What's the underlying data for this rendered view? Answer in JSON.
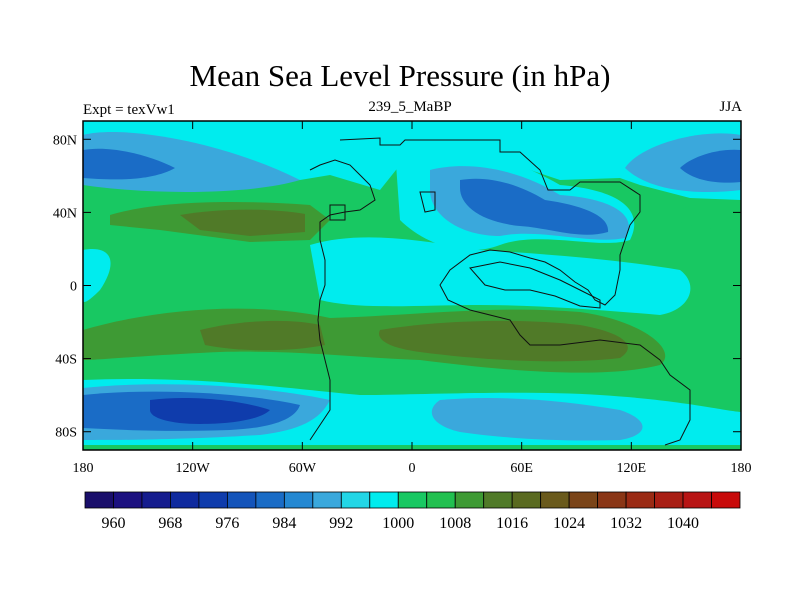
{
  "title": "Mean Sea Level Pressure (in hPa)",
  "left_label": "Expt = texVw1",
  "center_label": "239_5_MaBP",
  "right_label": "JJA",
  "lat_ticks": [
    "80N",
    "40N",
    "0",
    "40S",
    "80S"
  ],
  "lat_values": [
    80,
    40,
    0,
    -40,
    -80
  ],
  "lon_ticks": [
    "180",
    "120W",
    "60W",
    "0",
    "60E",
    "120E",
    "180"
  ],
  "lon_values": [
    -180,
    -120,
    -60,
    0,
    60,
    120,
    180
  ],
  "colorbar": {
    "colors": [
      "#1a0f6b",
      "#1c1180",
      "#151c8e",
      "#0f2a9e",
      "#0f3cac",
      "#1454ba",
      "#1a6cc6",
      "#2488d2",
      "#3aa8dc",
      "#22d6e6",
      "#00ecee",
      "#18c862",
      "#22c050",
      "#3e9a34",
      "#507a28",
      "#5a6a20",
      "#6a5a1c",
      "#7a4418",
      "#8a3616",
      "#9a2a14",
      "#a81e14",
      "#b81414",
      "#c80a0a"
    ],
    "labels": [
      "960",
      "968",
      "976",
      "984",
      "992",
      "1000",
      "1008",
      "1016",
      "1024",
      "1032",
      "1040"
    ],
    "label_start_index": 1,
    "label_step": 2
  },
  "map": {
    "lon_range": [
      -180,
      180
    ],
    "lat_range": [
      -90,
      90
    ],
    "background": "#18c862"
  }
}
